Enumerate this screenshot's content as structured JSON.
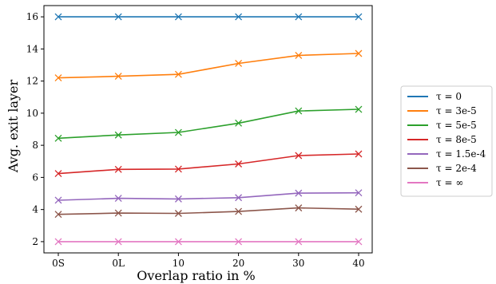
{
  "chart_data": {
    "type": "line",
    "title": "",
    "xlabel": "Overlap ratio in %",
    "ylabel": "Avg. exit layer",
    "categories": [
      "0S",
      "0L",
      "10",
      "20",
      "30",
      "40"
    ],
    "ylim": [
      1.3,
      16.7
    ],
    "yticks": [
      2,
      4,
      6,
      8,
      10,
      12,
      14,
      16
    ],
    "grid": false,
    "legend_position": "outside-right",
    "marker": "x",
    "series": [
      {
        "name": "τ = 0",
        "color": "#1f77b4",
        "values": [
          16,
          16,
          16,
          16,
          16,
          16
        ]
      },
      {
        "name": "τ = 3e-5",
        "color": "#ff7f0e",
        "values": [
          12.2,
          12.3,
          12.42,
          13.1,
          13.6,
          13.72
        ]
      },
      {
        "name": "τ = 5e-5",
        "color": "#2ca02c",
        "values": [
          8.44,
          8.64,
          8.8,
          9.38,
          10.14,
          10.24
        ]
      },
      {
        "name": "τ = 8e-5",
        "color": "#d62728",
        "values": [
          6.24,
          6.5,
          6.52,
          6.84,
          7.36,
          7.46
        ]
      },
      {
        "name": "τ = 1.5e-4",
        "color": "#9467bd",
        "values": [
          4.58,
          4.7,
          4.66,
          4.74,
          5.02,
          5.04
        ]
      },
      {
        "name": "τ = 2e-4",
        "color": "#8c564b",
        "values": [
          3.7,
          3.78,
          3.76,
          3.88,
          4.1,
          4.02
        ]
      },
      {
        "name": "τ = ∞",
        "color": "#e377c2",
        "values": [
          2,
          2,
          2,
          2,
          2,
          2
        ]
      }
    ]
  }
}
